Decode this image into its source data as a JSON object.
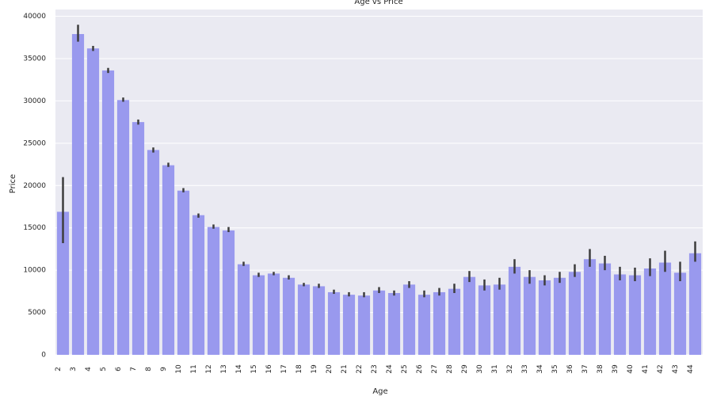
{
  "chart_data": {
    "type": "bar",
    "title": "Age vs Price",
    "x_label": "Age",
    "y_label": "Price",
    "categories": [
      "2",
      "3",
      "4",
      "5",
      "6",
      "7",
      "8",
      "9",
      "10",
      "11",
      "12",
      "13",
      "14",
      "15",
      "16",
      "17",
      "18",
      "19",
      "20",
      "21",
      "22",
      "23",
      "24",
      "25",
      "26",
      "27",
      "28",
      "29",
      "30",
      "31",
      "32",
      "33",
      "34",
      "35",
      "36",
      "37",
      "38",
      "39",
      "40",
      "41",
      "42",
      "43",
      "44"
    ],
    "values": [
      16900,
      37900,
      36200,
      33600,
      30100,
      27500,
      24200,
      22400,
      19400,
      16500,
      15100,
      14700,
      10700,
      9400,
      9600,
      9100,
      8300,
      8100,
      7400,
      7100,
      7000,
      7600,
      7300,
      8300,
      7100,
      7400,
      7800,
      9200,
      8200,
      8300,
      10400,
      9200,
      8800,
      9100,
      9800,
      11300,
      10800,
      9500,
      9400,
      10200,
      10900,
      9700,
      12000
    ],
    "ci_low": [
      13200,
      37000,
      35900,
      33300,
      29900,
      27200,
      23900,
      22200,
      19200,
      16200,
      14900,
      14500,
      10500,
      9200,
      9400,
      8900,
      8100,
      7900,
      7200,
      6900,
      6800,
      7300,
      7000,
      7900,
      6800,
      7000,
      7300,
      8600,
      7600,
      7700,
      9600,
      8400,
      8200,
      8500,
      9200,
      10400,
      10000,
      8800,
      8700,
      9300,
      9800,
      8700,
      11000
    ],
    "ci_high": [
      21000,
      39000,
      36500,
      33900,
      30400,
      27800,
      24500,
      22700,
      19700,
      16700,
      15400,
      15100,
      11000,
      9700,
      9800,
      9400,
      8500,
      8400,
      7700,
      7400,
      7400,
      8000,
      7600,
      8700,
      7600,
      7900,
      8400,
      9900,
      8900,
      9100,
      11300,
      10000,
      9400,
      9800,
      10700,
      12500,
      11700,
      10400,
      10300,
      11400,
      12300,
      11000,
      13400
    ],
    "color": "#9999ee",
    "error_color": "#3d3d3d",
    "ylim": [
      0,
      40800
    ],
    "yticks": [
      0,
      5000,
      10000,
      15000,
      20000,
      25000,
      30000,
      35000,
      40000
    ],
    "grid": true
  }
}
